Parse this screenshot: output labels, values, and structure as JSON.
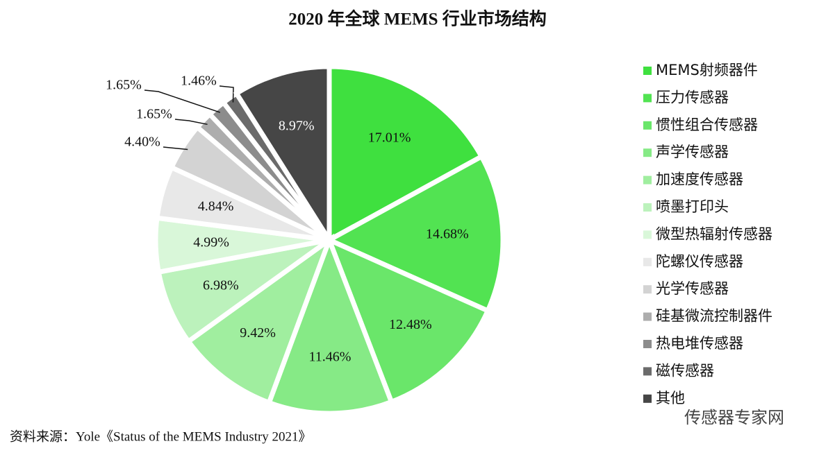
{
  "chart_data": {
    "type": "pie",
    "title": "2020 年全球 MEMS 行业市场结构",
    "categories": [
      "MEMS射频器件",
      "压力传感器",
      "惯性组合传感器",
      "声学传感器",
      "加速度传感器",
      "喷墨打印头",
      "微型热辐射传感器",
      "陀螺仪传感器",
      "光学传感器",
      "硅基微流控制器件",
      "热电堆传感器",
      "磁传感器",
      "其他"
    ],
    "values": [
      17.01,
      14.68,
      12.48,
      11.46,
      9.42,
      6.98,
      4.99,
      4.84,
      4.4,
      1.65,
      1.65,
      1.46,
      8.97
    ],
    "value_labels": [
      "17.01%",
      "14.68%",
      "12.48%",
      "11.46%",
      "9.42%",
      "6.98%",
      "4.99%",
      "4.84%",
      "4.40%",
      "1.65%",
      "1.65%",
      "1.46%",
      "8.97%"
    ],
    "colors": [
      "#3fe03f",
      "#52e352",
      "#6ae66a",
      "#86ea86",
      "#a0ee9f",
      "#bcf2bc",
      "#d9f7d9",
      "#e8e8e8",
      "#d3d3d3",
      "#adadad",
      "#8c8c8c",
      "#6b6b6b",
      "#464646"
    ],
    "legend": "right",
    "source": "资料来源：Yole《Status of the MEMS Industry 2021》",
    "watermark": "传感器专家网"
  }
}
